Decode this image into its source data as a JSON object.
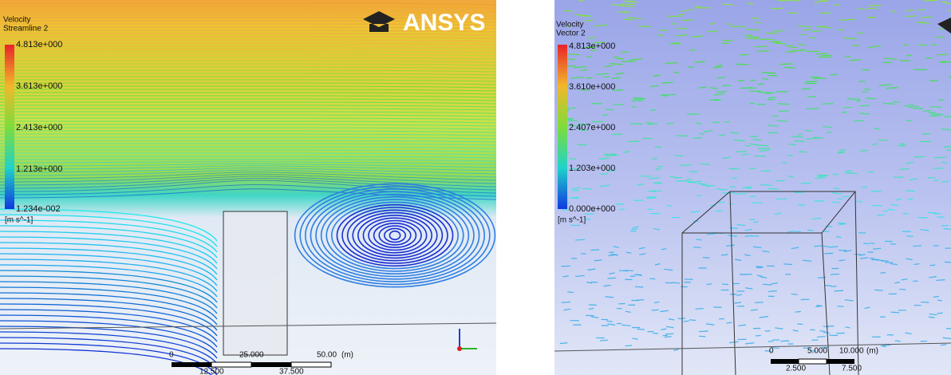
{
  "panels": [
    {
      "title": "Velocity",
      "subtitle": "Streamline 2",
      "legend_labels": [
        "4.813e+000",
        "3.613e+000",
        "2.413e+000",
        "1.213e+000",
        "1.234e-002"
      ],
      "unit": "[m s^-1]",
      "logo": "ANSYS",
      "scale_top": [
        "0",
        "25.000",
        "50.00",
        "(m)"
      ],
      "scale_bottom": [
        "12.500",
        "37.500"
      ]
    },
    {
      "title": "Velocity",
      "subtitle": "Vector 2",
      "legend_labels": [
        "4.813e+000",
        "3.610e+000",
        "2.407e+000",
        "1.203e+000",
        "0.000e+000"
      ],
      "unit": "[m s^-1]",
      "scale_top": [
        "0",
        "5.000",
        "10.000",
        "(m)"
      ],
      "scale_bottom": [
        "2.500",
        "7.500"
      ]
    }
  ]
}
